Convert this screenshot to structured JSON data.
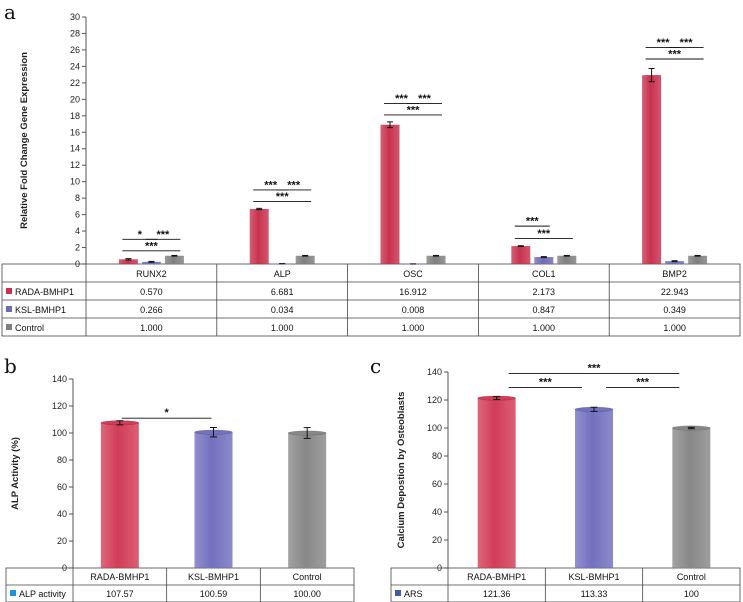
{
  "chart_data": [
    {
      "panel": "a",
      "type": "bar",
      "ylabel": "Relative Fold Change Gene Expression",
      "ylim": [
        0,
        30
      ],
      "yticks": [
        0,
        2,
        4,
        6,
        8,
        10,
        12,
        14,
        16,
        18,
        20,
        22,
        24,
        26,
        28,
        30
      ],
      "categories": [
        "RUNX2",
        "ALP",
        "OSC",
        "COL1",
        "BMP2"
      ],
      "series": [
        {
          "name": "RADA-BMHP1",
          "color": "#c8324f",
          "values": [
            0.57,
            6.681,
            16.912,
            2.173,
            22.943
          ],
          "labels": [
            "0.570",
            "6.681",
            "16.912",
            "2.173",
            "22.943"
          ],
          "errors": [
            0.08,
            0.08,
            0.35,
            0.05,
            0.8
          ]
        },
        {
          "name": "KSL-BMHP1",
          "color": "#6e6cb8",
          "values": [
            0.266,
            0.034,
            0.008,
            0.847,
            0.349
          ],
          "labels": [
            "0.266",
            "0.034",
            "0.008",
            "0.847",
            "0.349"
          ],
          "errors": [
            0.05,
            0.01,
            0.01,
            0.05,
            0.05
          ]
        },
        {
          "name": "Control",
          "color": "#7f7f7f",
          "values": [
            1.0,
            1.0,
            1.0,
            1.0,
            1.0
          ],
          "labels": [
            "1.000",
            "1.000",
            "1.000",
            "1.000",
            "1.000"
          ],
          "errors": [
            0.04,
            0.04,
            0.04,
            0.04,
            0.04
          ]
        }
      ],
      "significance": [
        {
          "category": 0,
          "brackets": [
            {
              "from": 0,
              "to": 1,
              "label": "*",
              "level": 3.0
            },
            {
              "from": 1,
              "to": 2,
              "label": "***",
              "level": 3.0
            },
            {
              "from": 0,
              "to": 2,
              "label": "***",
              "level": 1.6
            }
          ]
        },
        {
          "category": 1,
          "brackets": [
            {
              "from": 0,
              "to": 1,
              "label": "***",
              "level": 9.0
            },
            {
              "from": 1,
              "to": 2,
              "label": "***",
              "level": 9.0
            },
            {
              "from": 0,
              "to": 2,
              "label": "***",
              "level": 7.6
            }
          ]
        },
        {
          "category": 2,
          "brackets": [
            {
              "from": 0,
              "to": 1,
              "label": "***",
              "level": 19.5
            },
            {
              "from": 1,
              "to": 2,
              "label": "***",
              "level": 19.5
            },
            {
              "from": 0,
              "to": 2,
              "label": "***",
              "level": 18.1
            }
          ]
        },
        {
          "category": 3,
          "brackets": [
            {
              "from": 0,
              "to": 1,
              "label": "***",
              "level": 4.6
            },
            {
              "from": 0,
              "to": 2,
              "label": "***",
              "level": 3.1
            }
          ]
        },
        {
          "category": 4,
          "brackets": [
            {
              "from": 0,
              "to": 1,
              "label": "***",
              "level": 26.3
            },
            {
              "from": 1,
              "to": 2,
              "label": "***",
              "level": 26.3
            },
            {
              "from": 0,
              "to": 2,
              "label": "***",
              "level": 24.9
            }
          ]
        }
      ]
    },
    {
      "panel": "b",
      "type": "bar",
      "ylabel": "ALP Activity (%)",
      "ylim": [
        0,
        140
      ],
      "yticks": [
        0,
        20,
        40,
        60,
        80,
        100,
        120,
        140
      ],
      "categories": [
        "RADA-BMHP1",
        "KSL-BMHP1",
        "Control"
      ],
      "colors": [
        "#d23c58",
        "#7370be",
        "#888888"
      ],
      "series": [
        {
          "name": "ALP activity",
          "legend_color": "#1e90e0",
          "values": [
            107.57,
            100.59,
            100.0
          ],
          "labels": [
            "107.57",
            "100.59",
            "100.00"
          ],
          "errors": [
            1.5,
            3.5,
            4.0
          ]
        }
      ],
      "significance": [
        {
          "from": 0,
          "to": 1,
          "label": "*",
          "level": 111
        }
      ]
    },
    {
      "panel": "c",
      "type": "bar",
      "ylabel": "Calcium Depostion by Osteoblasts",
      "ylim": [
        0,
        140
      ],
      "yticks": [
        0,
        20,
        40,
        60,
        80,
        100,
        120,
        140
      ],
      "categories": [
        "RADA-BMHP1",
        "KSL-BMHP1",
        "Control"
      ],
      "colors": [
        "#d23c58",
        "#7370be",
        "#888888"
      ],
      "series": [
        {
          "name": "ARS",
          "legend_color": "#3a5f9a",
          "values": [
            121.36,
            113.33,
            100
          ],
          "labels": [
            "121.36",
            "113.33",
            "100"
          ],
          "errors": [
            1.0,
            1.5,
            0.5
          ]
        }
      ],
      "significance": [
        {
          "from": 0,
          "to": 2,
          "label": "***",
          "level": 139
        },
        {
          "from": 0,
          "to": 1,
          "label": "***",
          "level": 129
        },
        {
          "from": 1,
          "to": 2,
          "label": "***",
          "level": 129
        }
      ]
    }
  ]
}
